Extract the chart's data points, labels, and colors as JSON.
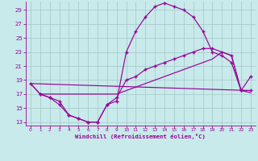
{
  "bg_color": "#c8eaea",
  "grid_color": "#a8cccc",
  "line_color": "#990099",
  "xlabel": "Windchill (Refroidissement éolien,°C)",
  "ytick_vals": [
    13,
    15,
    17,
    19,
    21,
    23,
    25,
    27,
    29
  ],
  "xtick_vals": [
    0,
    1,
    2,
    3,
    4,
    5,
    6,
    7,
    8,
    9,
    10,
    11,
    12,
    13,
    14,
    15,
    16,
    17,
    18,
    19,
    20,
    21,
    22,
    23
  ],
  "xlim": [
    -0.5,
    23.5
  ],
  "ylim": [
    12.5,
    30.2
  ],
  "curve1_x": [
    0,
    1,
    2,
    3,
    4,
    5,
    6,
    7,
    8,
    9,
    10,
    11,
    12,
    13,
    14,
    15,
    16,
    17,
    18,
    19,
    20,
    21,
    22,
    23
  ],
  "curve1_y": [
    18.5,
    17.0,
    16.5,
    15.5,
    14.0,
    13.5,
    13.0,
    13.0,
    15.5,
    16.0,
    23.0,
    26.0,
    28.0,
    29.5,
    30.0,
    29.5,
    29.0,
    28.0,
    26.0,
    23.0,
    22.5,
    21.5,
    17.5,
    19.5
  ],
  "curve2_x": [
    0,
    23
  ],
  "curve2_y": [
    18.5,
    17.5
  ],
  "curve3_x": [
    0,
    1,
    2,
    3,
    4,
    5,
    6,
    7,
    8,
    9,
    10,
    11,
    12,
    13,
    14,
    15,
    16,
    17,
    18,
    19,
    20,
    21,
    22,
    23
  ],
  "curve3_y": [
    18.5,
    17.0,
    17.0,
    17.0,
    17.0,
    17.0,
    17.0,
    17.0,
    17.0,
    17.0,
    17.5,
    18.0,
    18.5,
    19.0,
    19.5,
    20.0,
    20.5,
    21.0,
    21.5,
    22.0,
    23.0,
    22.5,
    17.5,
    17.2
  ],
  "curve4_x": [
    1,
    2,
    3,
    4,
    5,
    6,
    7,
    8,
    9,
    10,
    11,
    12,
    13,
    14,
    15,
    16,
    17,
    18,
    19,
    20,
    21,
    22,
    23
  ],
  "curve4_y": [
    17.0,
    16.5,
    16.0,
    14.0,
    13.5,
    13.0,
    13.0,
    15.5,
    16.5,
    19.0,
    19.5,
    20.5,
    21.0,
    21.5,
    22.0,
    22.5,
    23.0,
    23.5,
    23.5,
    23.0,
    22.5,
    17.5,
    17.5
  ]
}
